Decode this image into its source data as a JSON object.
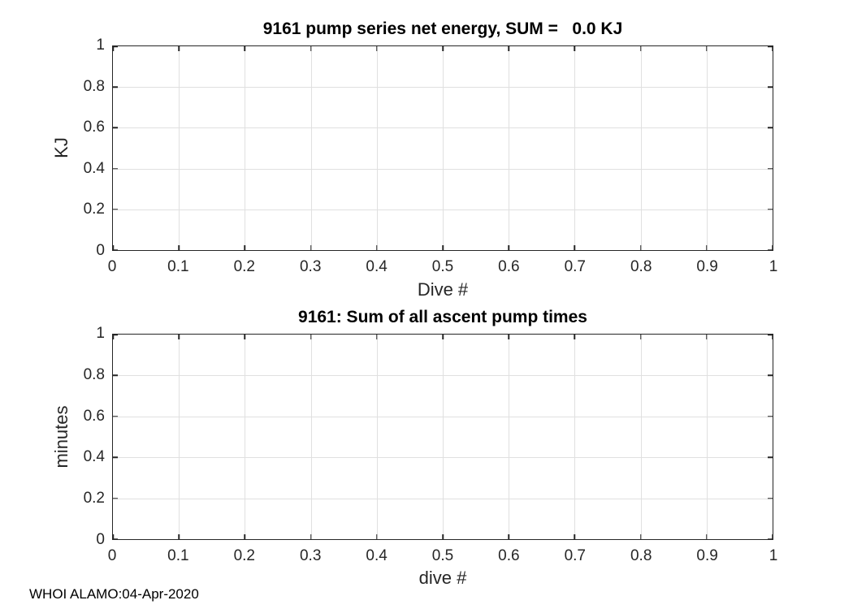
{
  "figure": {
    "annotation": "WHOI ALAMO:04-Apr-2020",
    "colors": {
      "background": "#ffffff",
      "axis": "#262626",
      "grid": "#e0e0e0",
      "title": "#000000",
      "tick_label": "#262626"
    }
  },
  "chart_data": [
    {
      "type": "line",
      "title": "9161 pump series net energy, SUM =   0.0 KJ",
      "xlabel": "Dive #",
      "ylabel": "KJ",
      "xlim": [
        0,
        1
      ],
      "ylim": [
        0,
        1
      ],
      "xtick_values": [
        0,
        0.1,
        0.2,
        0.3,
        0.4,
        0.5,
        0.6,
        0.7,
        0.8,
        0.9,
        1
      ],
      "xtick_labels": [
        "0",
        "0.1",
        "0.2",
        "0.3",
        "0.4",
        "0.5",
        "0.6",
        "0.7",
        "0.8",
        "0.9",
        "1"
      ],
      "ytick_values": [
        0,
        0.2,
        0.4,
        0.6,
        0.8,
        1
      ],
      "ytick_labels": [
        "0",
        "0.2",
        "0.4",
        "0.6",
        "0.8",
        "1"
      ],
      "grid": true,
      "legend": null,
      "series": []
    },
    {
      "type": "line",
      "title": "9161: Sum of all ascent pump times",
      "xlabel": "dive #",
      "ylabel": "minutes",
      "xlim": [
        0,
        1
      ],
      "ylim": [
        0,
        1
      ],
      "xtick_values": [
        0,
        0.1,
        0.2,
        0.3,
        0.4,
        0.5,
        0.6,
        0.7,
        0.8,
        0.9,
        1
      ],
      "xtick_labels": [
        "0",
        "0.1",
        "0.2",
        "0.3",
        "0.4",
        "0.5",
        "0.6",
        "0.7",
        "0.8",
        "0.9",
        "1"
      ],
      "ytick_values": [
        0,
        0.2,
        0.4,
        0.6,
        0.8,
        1
      ],
      "ytick_labels": [
        "0",
        "0.2",
        "0.4",
        "0.6",
        "0.8",
        "1"
      ],
      "grid": true,
      "legend": null,
      "series": []
    }
  ]
}
